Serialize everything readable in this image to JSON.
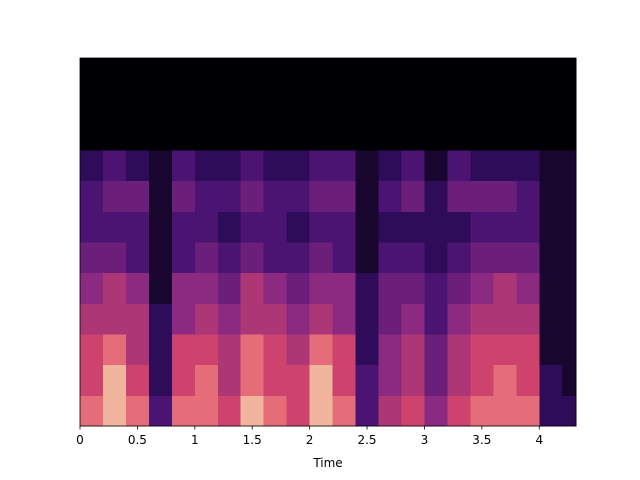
{
  "chart_data": {
    "type": "spectrogram",
    "xlabel": "Time",
    "bins": [
      0,
      0.2,
      0.4,
      0.6,
      0.8,
      1.0,
      1.2,
      1.4,
      1.6,
      1.8,
      2.0,
      2.2,
      2.4,
      2.6,
      2.8,
      3.0,
      3.2,
      3.4,
      3.6,
      3.8,
      4.0,
      4.2,
      4.32
    ],
    "z": [
      [
        0.8,
        0.9,
        0.8,
        0.3,
        0.8,
        0.8,
        0.7,
        0.9,
        0.8,
        0.7,
        0.9,
        0.8,
        0.3,
        0.6,
        0.7,
        0.5,
        0.7,
        0.8,
        0.8,
        0.8,
        0.2,
        0.2
      ],
      [
        0.7,
        0.9,
        0.7,
        0.2,
        0.7,
        0.8,
        0.6,
        0.8,
        0.7,
        0.7,
        0.9,
        0.7,
        0.3,
        0.5,
        0.6,
        0.4,
        0.6,
        0.7,
        0.8,
        0.7,
        0.2,
        0.1
      ],
      [
        0.7,
        0.8,
        0.6,
        0.2,
        0.7,
        0.7,
        0.6,
        0.8,
        0.7,
        0.6,
        0.8,
        0.7,
        0.2,
        0.5,
        0.6,
        0.4,
        0.6,
        0.7,
        0.7,
        0.7,
        0.1,
        0.1
      ],
      [
        0.6,
        0.6,
        0.6,
        0.2,
        0.5,
        0.6,
        0.5,
        0.6,
        0.6,
        0.5,
        0.6,
        0.5,
        0.2,
        0.4,
        0.5,
        0.3,
        0.5,
        0.6,
        0.6,
        0.6,
        0.1,
        0.1
      ],
      [
        0.5,
        0.6,
        0.5,
        0.1,
        0.5,
        0.5,
        0.4,
        0.6,
        0.5,
        0.4,
        0.5,
        0.5,
        0.2,
        0.4,
        0.4,
        0.3,
        0.4,
        0.5,
        0.6,
        0.5,
        0.1,
        0.1
      ],
      [
        0.4,
        0.4,
        0.3,
        0.1,
        0.3,
        0.4,
        0.3,
        0.4,
        0.3,
        0.3,
        0.4,
        0.3,
        0.1,
        0.3,
        0.3,
        0.2,
        0.3,
        0.4,
        0.4,
        0.4,
        0.1,
        0.1
      ],
      [
        0.3,
        0.3,
        0.3,
        0.1,
        0.3,
        0.3,
        0.2,
        0.3,
        0.3,
        0.2,
        0.3,
        0.3,
        0.1,
        0.2,
        0.2,
        0.2,
        0.2,
        0.3,
        0.3,
        0.3,
        0.1,
        0.1
      ],
      [
        0.3,
        0.4,
        0.4,
        0.1,
        0.4,
        0.3,
        0.3,
        0.4,
        0.3,
        0.3,
        0.4,
        0.4,
        0.1,
        0.3,
        0.4,
        0.2,
        0.4,
        0.4,
        0.4,
        0.3,
        0.1,
        0.1
      ],
      [
        0.2,
        0.3,
        0.2,
        0.1,
        0.3,
        0.2,
        0.2,
        0.3,
        0.2,
        0.2,
        0.3,
        0.3,
        0.1,
        0.2,
        0.3,
        0.1,
        0.3,
        0.2,
        0.2,
        0.2,
        0.1,
        0.1
      ],
      [
        0,
        0,
        0,
        0,
        0,
        0,
        0,
        0,
        0,
        0,
        0,
        0,
        0,
        0,
        0,
        0,
        0,
        0,
        0,
        0,
        0,
        0
      ],
      [
        0,
        0,
        0,
        0,
        0,
        0,
        0,
        0,
        0,
        0,
        0,
        0,
        0,
        0,
        0,
        0,
        0,
        0,
        0,
        0,
        0,
        0
      ],
      [
        0,
        0,
        0,
        0,
        0,
        0,
        0,
        0,
        0,
        0,
        0,
        0,
        0,
        0,
        0,
        0,
        0,
        0,
        0,
        0,
        0,
        0
      ]
    ],
    "colormap": [
      "#000004",
      "#3b0f70",
      "#8c2981",
      "#de4968",
      "#fcfdbf"
    ],
    "xlim": [
      0,
      4.32
    ],
    "xticks": [
      0,
      0.5,
      1,
      1.5,
      2,
      2.5,
      3,
      3.5,
      4
    ]
  }
}
